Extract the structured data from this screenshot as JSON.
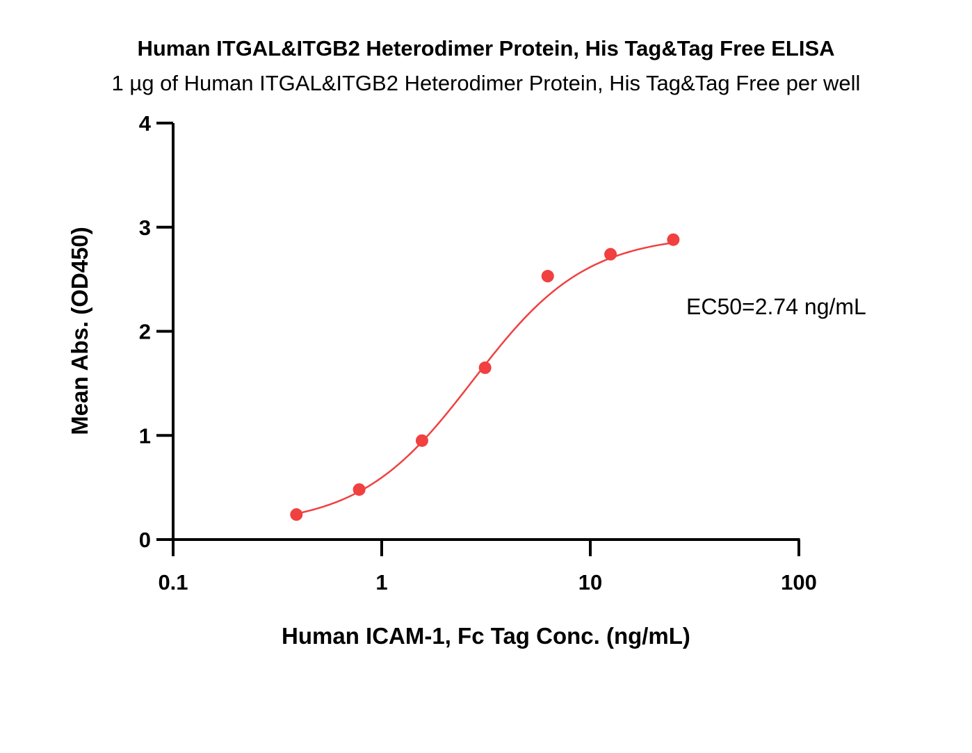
{
  "chart_data": {
    "type": "scatter",
    "title": "Human ITGAL&ITGB2 Heterodimer Protein, His Tag&Tag Free ELISA",
    "subtitle": "1 µg of Human ITGAL&ITGB2 Heterodimer Protein, His Tag&Tag Free per well",
    "xlabel": "Human ICAM-1, Fc Tag Conc. (ng/mL)",
    "ylabel": "Mean Abs. (OD450)",
    "x_scale": "log",
    "xlim": [
      0.1,
      100
    ],
    "ylim": [
      0,
      4
    ],
    "x_ticks": [
      "0.1",
      "1",
      "10",
      "100"
    ],
    "y_ticks": [
      "0",
      "1",
      "2",
      "3",
      "4"
    ],
    "grid": false,
    "annotation": "EC50=2.74 ng/mL",
    "color": "#f04040",
    "points": {
      "x": [
        0.39,
        0.78,
        1.56,
        3.13,
        6.25,
        12.5,
        25
      ],
      "y": [
        0.24,
        0.48,
        0.95,
        1.65,
        2.53,
        2.74,
        2.88
      ]
    },
    "fit": {
      "model": "4PL",
      "bottom": 0.13,
      "top": 2.93,
      "ec50": 2.74,
      "hill": 1.6
    }
  }
}
